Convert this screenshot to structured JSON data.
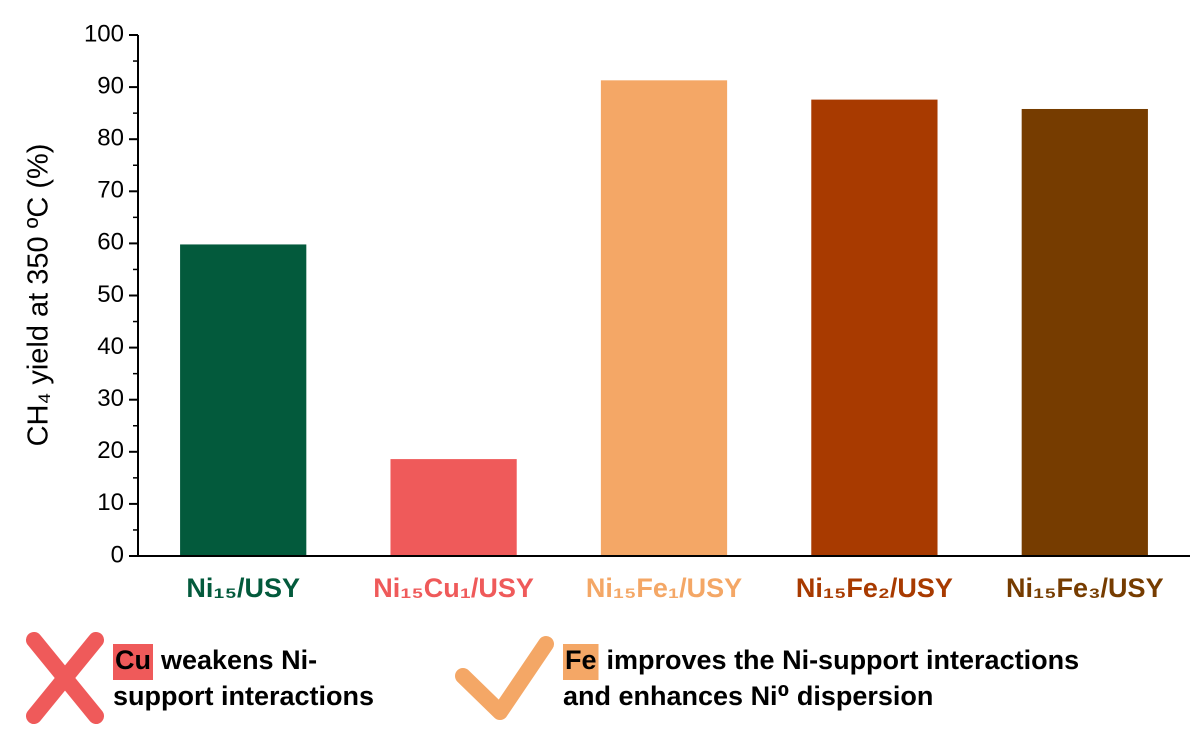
{
  "chart_data": {
    "type": "bar",
    "ylabel": "CH₄ yield at 350 ºC (%)",
    "categories": [
      "Ni₁₅/USY",
      "Ni₁₅Cu₁/USY",
      "Ni₁₅Fe₁/USY",
      "Ni₁₅Fe₂/USY",
      "Ni₁₅Fe₃/USY"
    ],
    "values": [
      59.8,
      18.6,
      91.3,
      87.6,
      85.8
    ],
    "colors": [
      "#035a3c",
      "#ef5a5a",
      "#f4a766",
      "#a83a00",
      "#763c00"
    ],
    "ylim": [
      0,
      100
    ],
    "yticks": [
      0,
      10,
      20,
      30,
      40,
      50,
      60,
      70,
      80,
      90,
      100
    ],
    "yminor_ticks": [
      5,
      15,
      25,
      35,
      45,
      55,
      65,
      75,
      85,
      95
    ],
    "annotations": [
      {
        "highlight": "Cu",
        "color": "#ef5a5a",
        "text": [
          "weakens Ni-",
          "support interactions"
        ]
      },
      {
        "highlight": "Fe",
        "color": "#f4a766",
        "text": [
          "improves the Ni-support interactions",
          "and enhances Ni⁰ dispersion"
        ]
      }
    ]
  }
}
